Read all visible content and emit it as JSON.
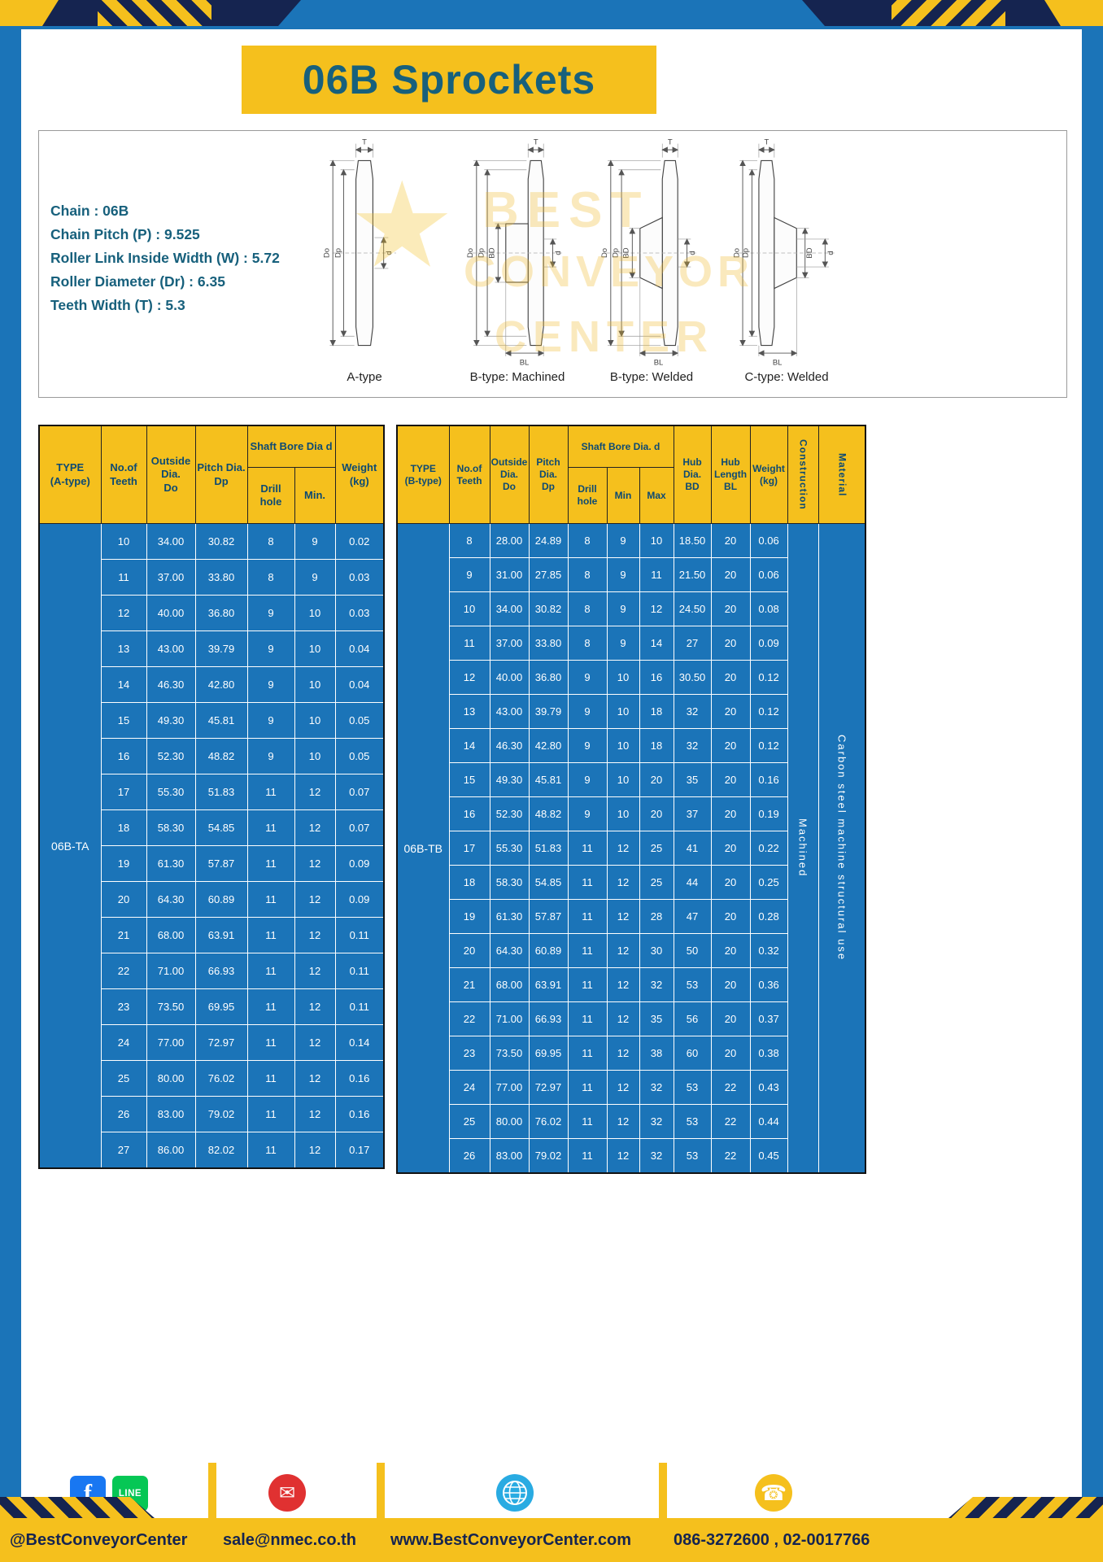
{
  "title": "06B Sprockets",
  "specs": {
    "lines": [
      "Chain  :  06B",
      "Chain Pitch (P)  :  9.525",
      "Roller Link Inside Width (W)  :  5.72",
      "Roller Diameter (Dr)  :  6.35",
      "Teeth Width (T)  :  5.3"
    ]
  },
  "watermark": {
    "star": "★",
    "line1": "BEST",
    "line2": "CONVEYOR",
    "line3": "CENTER"
  },
  "diagrams": {
    "captions": [
      "A-type",
      "B-type: Machined",
      "B-type: Welded",
      "C-type: Welded"
    ],
    "dims": {
      "t": "T",
      "do": "Do",
      "dp": "Dp",
      "d": "d",
      "bd": "BD",
      "bl": "BL"
    }
  },
  "table_a": {
    "header": {
      "type": "TYPE\n(A-type)",
      "teeth": "No.of\nTeeth",
      "outside": "Outside\nDia.\nDo",
      "pitch": "Pitch Dia.\nDp",
      "bore_group": "Shaft Bore Dia d",
      "drill": "Drill hole",
      "min": "Min.",
      "weight": "Weight\n(kg)"
    },
    "type_value": "06B-TA",
    "rows": [
      [
        "10",
        "34.00",
        "30.82",
        "8",
        "9",
        "0.02"
      ],
      [
        "11",
        "37.00",
        "33.80",
        "8",
        "9",
        "0.03"
      ],
      [
        "12",
        "40.00",
        "36.80",
        "9",
        "10",
        "0.03"
      ],
      [
        "13",
        "43.00",
        "39.79",
        "9",
        "10",
        "0.04"
      ],
      [
        "14",
        "46.30",
        "42.80",
        "9",
        "10",
        "0.04"
      ],
      [
        "15",
        "49.30",
        "45.81",
        "9",
        "10",
        "0.05"
      ],
      [
        "16",
        "52.30",
        "48.82",
        "9",
        "10",
        "0.05"
      ],
      [
        "17",
        "55.30",
        "51.83",
        "11",
        "12",
        "0.07"
      ],
      [
        "18",
        "58.30",
        "54.85",
        "11",
        "12",
        "0.07"
      ],
      [
        "19",
        "61.30",
        "57.87",
        "11",
        "12",
        "0.09"
      ],
      [
        "20",
        "64.30",
        "60.89",
        "11",
        "12",
        "0.09"
      ],
      [
        "21",
        "68.00",
        "63.91",
        "11",
        "12",
        "0.11"
      ],
      [
        "22",
        "71.00",
        "66.93",
        "11",
        "12",
        "0.11"
      ],
      [
        "23",
        "73.50",
        "69.95",
        "11",
        "12",
        "0.11"
      ],
      [
        "24",
        "77.00",
        "72.97",
        "11",
        "12",
        "0.14"
      ],
      [
        "25",
        "80.00",
        "76.02",
        "11",
        "12",
        "0.16"
      ],
      [
        "26",
        "83.00",
        "79.02",
        "11",
        "12",
        "0.16"
      ],
      [
        "27",
        "86.00",
        "82.02",
        "11",
        "12",
        "0.17"
      ]
    ]
  },
  "table_b": {
    "header": {
      "type": "TYPE\n(B-type)",
      "teeth": "No.of\nTeeth",
      "outside": "Outside\nDia.\nDo",
      "pitch": "Pitch\nDia.\nDp",
      "bore_group": "Shaft Bore Dia.  d",
      "drill": "Drill hole",
      "min": "Min",
      "max": "Max",
      "hub_dia": "Hub\nDia.\nBD",
      "hub_len": "Hub\nLength\nBL",
      "weight": "Weight\n(kg)",
      "construction": "Construction",
      "material": "Material"
    },
    "type_value": "06B-TB",
    "construction_value": "Machined",
    "material_value": "Carbon steel machine structural use",
    "rows": [
      [
        "8",
        "28.00",
        "24.89",
        "8",
        "9",
        "10",
        "18.50",
        "20",
        "0.06"
      ],
      [
        "9",
        "31.00",
        "27.85",
        "8",
        "9",
        "11",
        "21.50",
        "20",
        "0.06"
      ],
      [
        "10",
        "34.00",
        "30.82",
        "8",
        "9",
        "12",
        "24.50",
        "20",
        "0.08"
      ],
      [
        "11",
        "37.00",
        "33.80",
        "8",
        "9",
        "14",
        "27",
        "20",
        "0.09"
      ],
      [
        "12",
        "40.00",
        "36.80",
        "9",
        "10",
        "16",
        "30.50",
        "20",
        "0.12"
      ],
      [
        "13",
        "43.00",
        "39.79",
        "9",
        "10",
        "18",
        "32",
        "20",
        "0.12"
      ],
      [
        "14",
        "46.30",
        "42.80",
        "9",
        "10",
        "18",
        "32",
        "20",
        "0.12"
      ],
      [
        "15",
        "49.30",
        "45.81",
        "9",
        "10",
        "20",
        "35",
        "20",
        "0.16"
      ],
      [
        "16",
        "52.30",
        "48.82",
        "9",
        "10",
        "20",
        "37",
        "20",
        "0.19"
      ],
      [
        "17",
        "55.30",
        "51.83",
        "11",
        "12",
        "25",
        "41",
        "20",
        "0.22"
      ],
      [
        "18",
        "58.30",
        "54.85",
        "11",
        "12",
        "25",
        "44",
        "20",
        "0.25"
      ],
      [
        "19",
        "61.30",
        "57.87",
        "11",
        "12",
        "28",
        "47",
        "20",
        "0.28"
      ],
      [
        "20",
        "64.30",
        "60.89",
        "11",
        "12",
        "30",
        "50",
        "20",
        "0.32"
      ],
      [
        "21",
        "68.00",
        "63.91",
        "11",
        "12",
        "32",
        "53",
        "20",
        "0.36"
      ],
      [
        "22",
        "71.00",
        "66.93",
        "11",
        "12",
        "35",
        "56",
        "20",
        "0.37"
      ],
      [
        "23",
        "73.50",
        "69.95",
        "11",
        "12",
        "38",
        "60",
        "20",
        "0.38"
      ],
      [
        "24",
        "77.00",
        "72.97",
        "11",
        "12",
        "32",
        "53",
        "22",
        "0.43"
      ],
      [
        "25",
        "80.00",
        "76.02",
        "11",
        "12",
        "32",
        "53",
        "22",
        "0.44"
      ],
      [
        "26",
        "83.00",
        "79.02",
        "11",
        "12",
        "32",
        "53",
        "22",
        "0.45"
      ]
    ]
  },
  "footer": {
    "social": "@BestConveyorCenter",
    "email": "sale@nmec.co.th",
    "website": "www.BestConveyorCenter.com",
    "phone": "086-3272600 , 02-0017766"
  },
  "icons": {
    "facebook": "f",
    "line": "LINE",
    "email": "✉",
    "phone": "☎"
  },
  "colors": {
    "frame_blue": "#1b74b8",
    "accent_yellow": "#f5c01d",
    "navy": "#152450",
    "teal": "#17607c"
  }
}
